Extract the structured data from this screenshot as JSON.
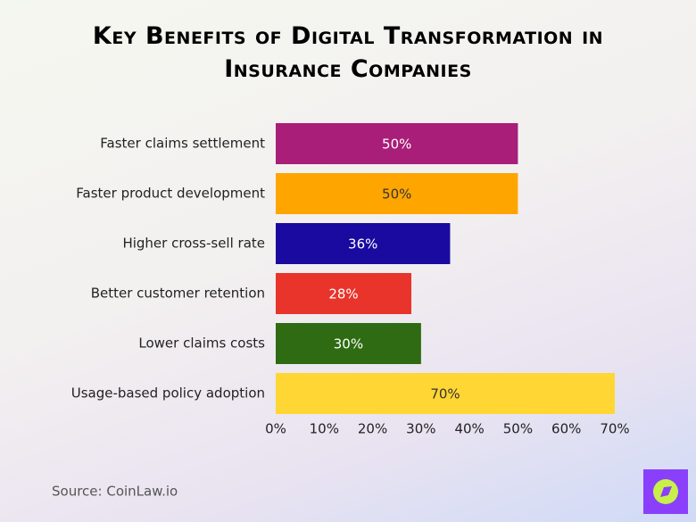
{
  "chart_data": {
    "type": "bar",
    "orientation": "horizontal",
    "title": "Key Benefits of Digital Transformation in Insurance Companies",
    "categories": [
      "Faster claims settlement",
      "Faster product development",
      "Higher cross-sell rate",
      "Better customer retention",
      "Lower claims costs",
      "Usage-based policy adoption"
    ],
    "values": [
      50,
      50,
      36,
      28,
      30,
      70
    ],
    "value_labels": [
      "50%",
      "50%",
      "36%",
      "28%",
      "30%",
      "70%"
    ],
    "colors": [
      "#a81e78",
      "#ffa500",
      "#1a0aa0",
      "#e8342a",
      "#2e6b12",
      "#ffd633"
    ],
    "xlim": [
      0,
      70
    ],
    "xticks": [
      {
        "value": 0,
        "label": "0%"
      },
      {
        "value": 10,
        "label": "10%"
      },
      {
        "value": 20,
        "label": "20%"
      },
      {
        "value": 30,
        "label": "30%"
      },
      {
        "value": 40,
        "label": "40%"
      },
      {
        "value": 50,
        "label": "50%"
      },
      {
        "value": 60,
        "label": "60%"
      },
      {
        "value": 70,
        "label": "70%"
      }
    ],
    "grid": false,
    "source": "Source: CoinLaw.io"
  }
}
